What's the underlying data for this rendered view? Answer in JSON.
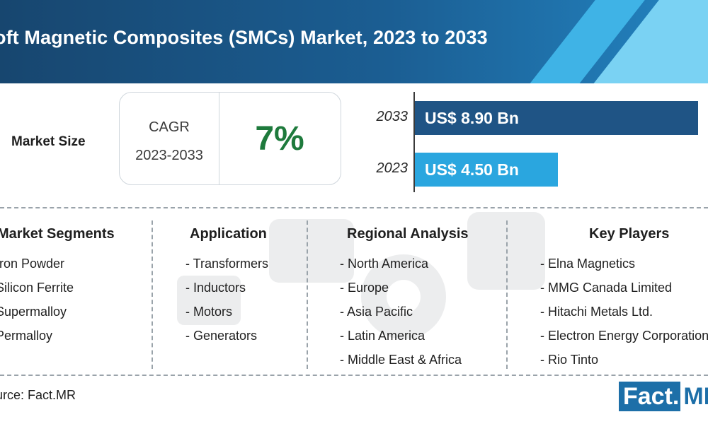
{
  "header": {
    "title": "oft Magnetic Composites (SMCs) Market, 2023 to 2033"
  },
  "market_size": {
    "label": "Market Size",
    "cagr_label": "CAGR",
    "cagr_period": "2023-2033",
    "cagr_value": "7%"
  },
  "chart_data": {
    "type": "bar",
    "orientation": "horizontal",
    "categories": [
      "2033",
      "2023"
    ],
    "values": [
      8.9,
      4.5
    ],
    "value_labels": [
      "US$ 8.90 Bn",
      "US$ 4.50 Bn"
    ],
    "unit": "US$ Bn",
    "xlim": [
      0,
      8.9
    ],
    "colors": [
      "#1f5485",
      "#2aa6df"
    ],
    "grid": false
  },
  "segments": [
    {
      "title": "Market Segments",
      "items": [
        "Iron Powder",
        "Silicon Ferrite",
        "Supermalloy",
        "Permalloy"
      ]
    },
    {
      "title": "Application",
      "items": [
        "- Transformers",
        "- Inductors",
        "- Motors",
        "- Generators"
      ]
    },
    {
      "title": "Regional Analysis",
      "items": [
        "- North America",
        "- Europe",
        "- Asia Pacific",
        "- Latin America",
        "- Middle East & Africa"
      ]
    },
    {
      "title": "Key Players",
      "items": [
        "- Elna Magnetics",
        "- MMG Canada Limited",
        "- Hitachi Metals Ltd.",
        "- Electron Energy Corporation",
        "- Rio Tinto"
      ]
    }
  ],
  "footer": {
    "source": "urce: Fact.MR",
    "logo_main": "Fact",
    "logo_dot": ".",
    "logo_suffix": "MR"
  },
  "colors": {
    "header": "#1b5e93",
    "accent_light": "#7ad2f3",
    "cagr": "#1e7a3c"
  }
}
